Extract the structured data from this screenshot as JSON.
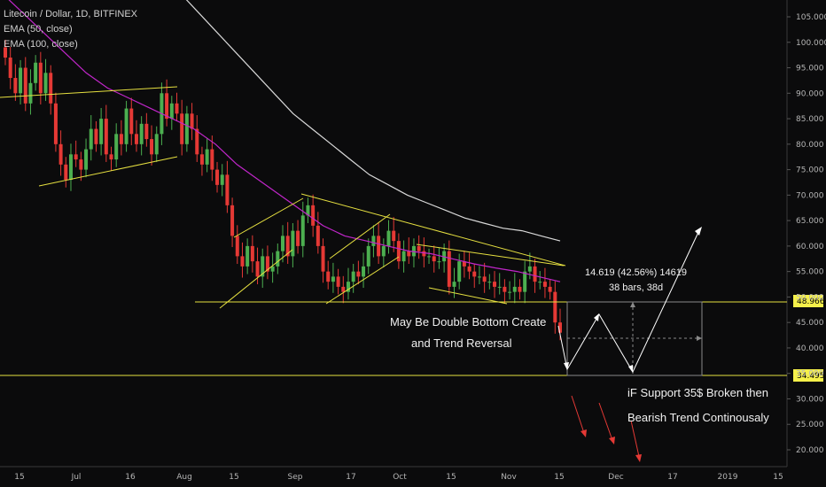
{
  "legend": {
    "symbol": "Litecoin / Dollar, 1D, BITFINEX",
    "ema50": "EMA (50, close)",
    "ema100": "EMA (100, close)"
  },
  "colors": {
    "background": "#0b0b0c",
    "up": "#4caf50",
    "down": "#e53935",
    "ema50": "#c026c9",
    "ema100": "#d9d9d9",
    "trendline": "#e6e040",
    "projection": "#ffffff",
    "bearish_arrow": "#e53935",
    "price_tag": "#f5f04a"
  },
  "annotations": {
    "double_bottom_line1": "May Be Double Bottom Create",
    "double_bottom_line2": "and Trend Reversal",
    "support_line1": "iF Support 35$ Broken then",
    "support_line2": "Bearish Trend Continousaly",
    "measure_line1": "14.619 (42.56%) 14619",
    "measure_line2": "38 bars, 38d"
  },
  "price_tags": {
    "resistance": "48.966",
    "support": "34.495"
  },
  "chart_data": {
    "type": "candlestick",
    "title": "Litecoin / Dollar, 1D, BITFINEX",
    "ylim": [
      16.0,
      110.0
    ],
    "y_ticks": [
      "105.000",
      "100.000",
      "95.000",
      "90.000",
      "85.000",
      "80.000",
      "75.000",
      "70.000",
      "65.000",
      "60.000",
      "55.000",
      "50.000",
      "45.000",
      "40.000",
      "35.000",
      "30.000",
      "25.000",
      "20.000"
    ],
    "x_ticks": [
      "15",
      "Jul",
      "16",
      "Aug",
      "15",
      "Sep",
      "17",
      "Oct",
      "15",
      "Nov",
      "15",
      "Dec",
      "17",
      "2019",
      "15"
    ],
    "price_series": [
      97,
      93,
      90,
      95,
      88,
      92,
      96,
      90,
      94,
      88,
      80,
      76,
      73,
      78,
      77,
      75,
      79,
      83,
      80,
      85,
      78,
      77,
      82,
      80,
      87,
      82,
      80,
      84,
      81,
      78,
      82,
      90,
      85,
      88,
      86,
      80,
      86,
      83,
      78,
      76,
      79,
      75,
      72,
      74,
      68,
      62,
      58,
      56,
      60,
      57,
      54,
      58,
      55,
      56,
      59,
      62,
      58,
      63,
      60,
      66,
      68,
      64,
      60,
      55,
      53,
      54,
      52,
      51,
      53,
      55,
      54,
      56,
      60,
      62,
      58,
      60,
      63,
      61,
      57,
      59,
      58,
      60,
      59,
      58,
      58,
      57,
      57,
      59,
      52,
      53,
      57,
      56,
      55,
      54,
      54,
      53,
      53,
      52,
      52,
      51,
      51,
      52,
      51,
      55,
      56,
      53,
      53,
      52,
      51,
      45,
      43
    ],
    "series": [
      {
        "name": "EMA (50, close)",
        "values": [
          110,
          106,
          102,
          98,
          94,
          91,
          89,
          87,
          85,
          83,
          80,
          76,
          73,
          70,
          67,
          64,
          62,
          61,
          60,
          59,
          58.5,
          57.5,
          56.5,
          55.7,
          55,
          54,
          53
        ]
      },
      {
        "name": "EMA (100, close)",
        "values": [
          114,
          110,
          106,
          102,
          98,
          94,
          90,
          86,
          83,
          80,
          77,
          74,
          72,
          70,
          68.5,
          67,
          65.5,
          64.5,
          63.5,
          63,
          62,
          61
        ]
      }
    ],
    "levels": [
      48.966,
      34.495
    ],
    "measure": {
      "change": 14.619,
      "percent": 42.56,
      "bars": 38
    }
  }
}
